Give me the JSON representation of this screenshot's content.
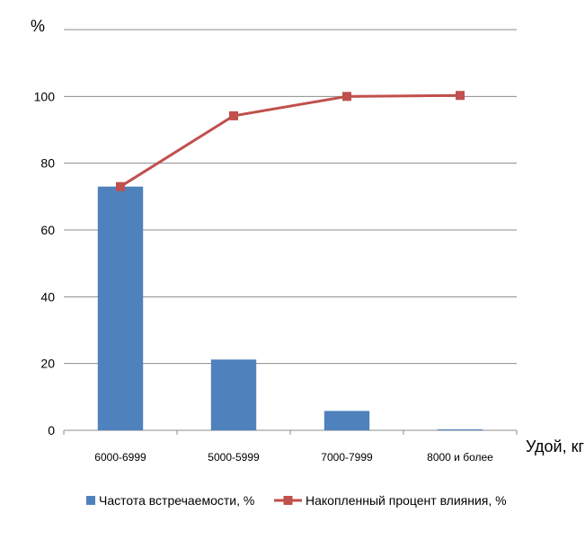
{
  "chart_data": {
    "type": "bar",
    "categories": [
      "6000-6999",
      "5000-5999",
      "7000-7999",
      "8000 и более"
    ],
    "ylabel": "%",
    "xlabel": "Удой, кг",
    "ylim": [
      0,
      120
    ],
    "yticks": [
      0,
      20,
      40,
      60,
      80,
      100
    ],
    "grid": true,
    "legend_position": "bottom",
    "series": [
      {
        "name": "Частота встречаемости, %",
        "type": "bar",
        "color": "#4F81BD",
        "values": [
          73,
          21.2,
          5.8,
          0.3
        ]
      },
      {
        "name": "Накопленный процент влияния, %",
        "type": "line",
        "color": "#C0504D",
        "marker": "square",
        "values": [
          73,
          94.2,
          100,
          100.3
        ]
      }
    ]
  }
}
